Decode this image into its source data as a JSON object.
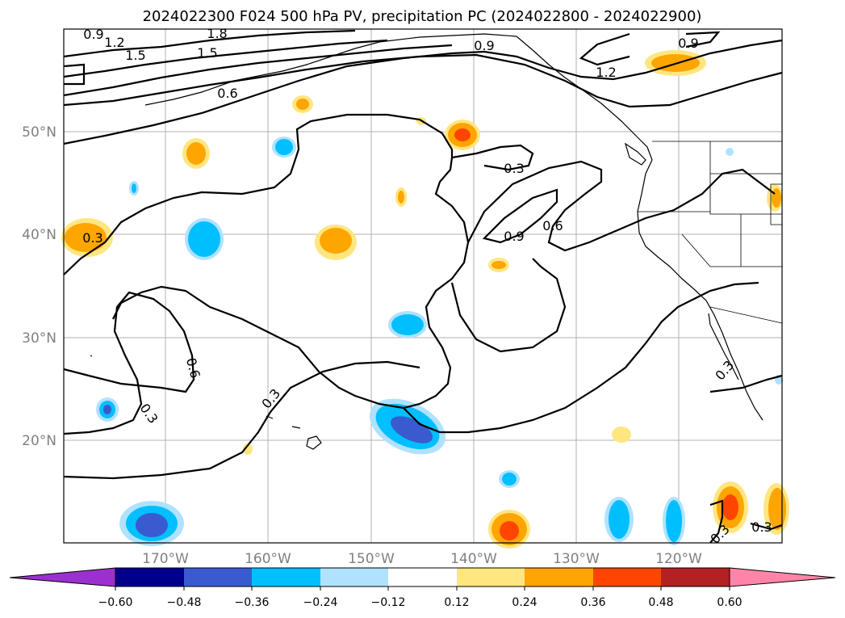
{
  "title": "2024022300 F024 500 hPa PV, precipitation PC (2024022800 - 2024022900)",
  "axes": {
    "x_ticks": [
      "170°W",
      "160°W",
      "150°W",
      "140°W",
      "130°W",
      "120°W"
    ],
    "y_ticks": [
      "50°N",
      "40°N",
      "30°N",
      "20°N"
    ]
  },
  "colorbar": {
    "ticks": [
      "−0.60",
      "−0.48",
      "−0.36",
      "−0.24",
      "−0.12",
      "0.12",
      "0.24",
      "0.36",
      "0.48",
      "0.60"
    ],
    "colors": [
      "#9b30d0",
      "#00008b",
      "#3a5bd0",
      "#00bfff",
      "#b0e2ff",
      "#ffffff",
      "#ffe680",
      "#ffa500",
      "#ff4500",
      "#b22222",
      "#ff85a8"
    ]
  },
  "contour_labels": [
    "0.9",
    "1.2",
    "1.8",
    "1.5",
    "1.5",
    "0.6",
    "0.9",
    "1.2",
    "0.9",
    "0.3",
    "0.9",
    "0.6",
    "0.3",
    "0.6",
    "0.3",
    "0.3",
    "0.3",
    "0.3",
    "0.3"
  ],
  "chart_data": {
    "type": "map",
    "field": "500 hPa PV",
    "shading": "precipitation PC",
    "xlim": [
      "180°W",
      "110°W"
    ],
    "ylim": [
      "10°N",
      "60°N"
    ],
    "contour_levels": [
      0.3,
      0.6,
      0.9,
      1.2,
      1.5,
      1.8
    ],
    "shading_levels": [
      -0.6,
      -0.48,
      -0.36,
      -0.24,
      -0.12,
      0.12,
      0.24,
      0.36,
      0.48,
      0.6
    ],
    "grid": true
  }
}
